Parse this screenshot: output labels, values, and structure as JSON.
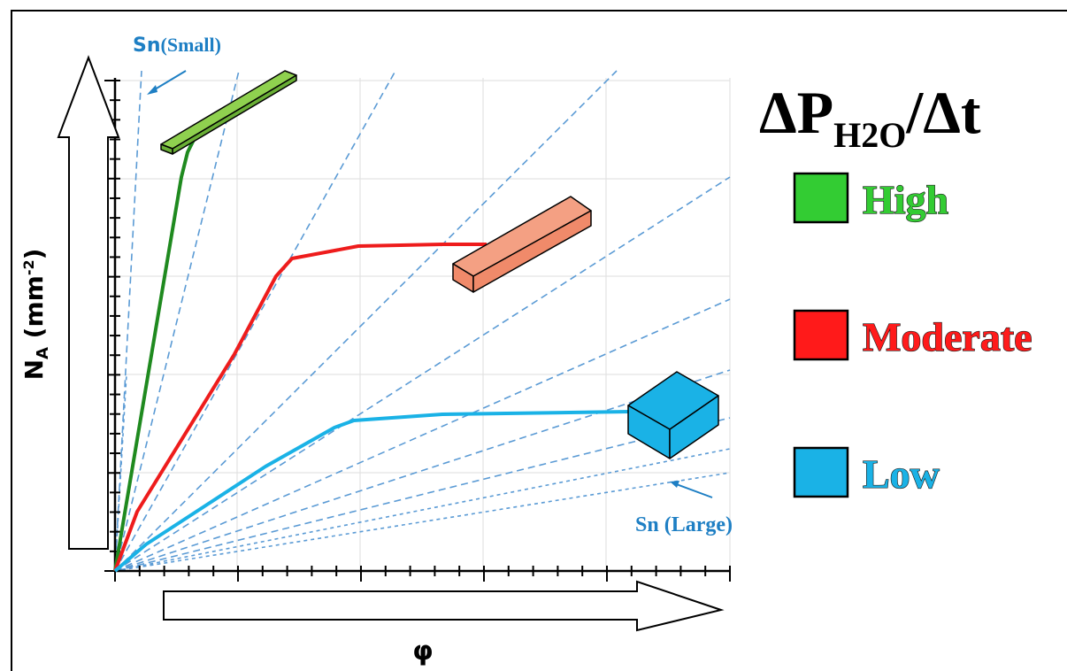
{
  "annotations": {
    "small": {
      "sn": "Sn",
      "rest": "(Small)"
    },
    "large": "Sn (Large)"
  },
  "axes": {
    "y_label": {
      "main": "N",
      "sub": "A",
      "open": " (mm",
      "sup": "-2",
      "close": ")"
    },
    "x_label": "φ"
  },
  "legend": {
    "title": {
      "main": "ΔP",
      "sub": "H2O",
      "rest": "/Δt"
    },
    "items": [
      {
        "label": "High",
        "color": "#33cc33"
      },
      {
        "label": "Moderate",
        "color": "#ff1a1a"
      },
      {
        "label": "Low",
        "color": "#1ab2e6"
      }
    ]
  }
}
